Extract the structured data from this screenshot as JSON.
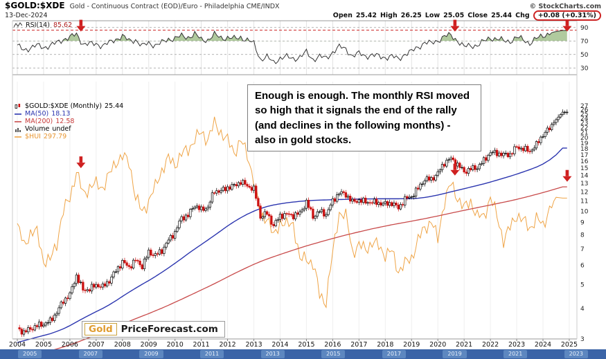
{
  "header": {
    "symbol": "$GOLD:$XDE",
    "description": "Gold - Continuous Contract (EOD)/Euro - Philadelphia CME/INDX",
    "date": "13-Dec-2024",
    "copyright": "© StockCharts.com",
    "quote": {
      "open_label": "Open",
      "open": "25.42",
      "high_label": "High",
      "high": "26.25",
      "low_label": "Low",
      "low": "25.05",
      "close_label": "Close",
      "close": "25.44",
      "chg_label": "Chg",
      "chg": "+0.08 (+0.31%)"
    }
  },
  "rsi_panel": {
    "legend": {
      "label": "RSI(14)",
      "value": "85.62"
    },
    "axis_labels": [
      "90",
      "70",
      "50",
      "30"
    ]
  },
  "main_panel": {
    "legend": [
      {
        "label": "$GOLD:$XDE (Monthly)",
        "value": "25.44"
      },
      {
        "label": "MA(50)",
        "value": "18.13"
      },
      {
        "label": "MA(200)",
        "value": "12.58"
      },
      {
        "label": "Volume",
        "value": "undef"
      },
      {
        "label": "$HUI",
        "value": "297.79"
      }
    ]
  },
  "annotation": {
    "text": "Enough is enough. The monthly RSI moved so high that it signals the end of the rally (and declines in the following months) - also in gold stocks."
  },
  "logo": {
    "part1": "Gold",
    "part2": "PriceForecast.com"
  },
  "timeline": {
    "years": [
      "2005",
      "2007",
      "2009",
      "2011",
      "2013",
      "2015",
      "2017",
      "2019",
      "2021",
      "2023"
    ]
  },
  "chart_data": [
    {
      "type": "line",
      "name": "RSI(14) monthly",
      "title": "RSI(14) 85.62",
      "x_start": 2004,
      "x_step_years": 0.25,
      "ylim": [
        20,
        100
      ],
      "gridlines": [
        90,
        70,
        50,
        30
      ],
      "overbought_level": 70,
      "signal_level": 86,
      "arrows_x": [
        2006.42,
        2020.65,
        2024.92
      ],
      "values": [
        62,
        57,
        60,
        63,
        61,
        63,
        67,
        73,
        75,
        80,
        66,
        65,
        66,
        63,
        67,
        73,
        77,
        70,
        72,
        62,
        67,
        64,
        67,
        73,
        74,
        77,
        76,
        80,
        72,
        72,
        79,
        75,
        75,
        73,
        76,
        71,
        66,
        43,
        46,
        38,
        45,
        46,
        44,
        46,
        53,
        43,
        47,
        44,
        54,
        61,
        58,
        48,
        51,
        48,
        49,
        47,
        46,
        47,
        43,
        51,
        54,
        61,
        68,
        66,
        71,
        77,
        78,
        71,
        61,
        63,
        64,
        69,
        75,
        73,
        70,
        70,
        75,
        72,
        67,
        73,
        78,
        82,
        84,
        85.62
      ]
    },
    {
      "type": "candlestick",
      "name": "$GOLD:$XDE monthly with MA(50), MA(200) and $HUI overlay",
      "x_start": 2004,
      "x_step_years": 0.25,
      "log_scale": true,
      "ylim": [
        3,
        28
      ],
      "y_ticks": [
        27,
        26,
        25,
        24,
        23,
        22,
        21,
        20,
        19,
        18,
        17,
        16,
        15,
        14,
        13,
        12,
        11,
        10,
        9,
        8,
        7,
        6,
        5,
        4,
        3
      ],
      "x_labels": [
        "2004",
        "2005",
        "2006",
        "2007",
        "2008",
        "2009",
        "2010",
        "2011",
        "2012",
        "2013",
        "2014",
        "2015",
        "2016",
        "2017",
        "2018",
        "2019",
        "2020",
        "2021",
        "2022",
        "2023",
        "2024",
        "2025"
      ],
      "close": [
        3.3,
        3.2,
        3.3,
        3.4,
        3.45,
        3.55,
        3.85,
        4.3,
        4.55,
        5.45,
        4.75,
        4.8,
        5.0,
        4.9,
        5.2,
        5.7,
        6.2,
        5.9,
        6.3,
        5.95,
        6.8,
        6.6,
        6.9,
        7.6,
        8.2,
        9.4,
        9.6,
        10.6,
        10.1,
        10.4,
        12.1,
        12.1,
        12.5,
        12.7,
        13.2,
        12.7,
        12.3,
        9.5,
        9.8,
        8.7,
        9.6,
        9.7,
        9.6,
        9.8,
        10.9,
        9.5,
        10.0,
        9.7,
        11.0,
        11.9,
        11.7,
        10.9,
        11.1,
        10.9,
        10.9,
        10.8,
        10.7,
        10.8,
        10.3,
        11.2,
        11.5,
        12.4,
        13.5,
        13.5,
        14.3,
        15.8,
        16.4,
        15.5,
        14.5,
        14.9,
        15.1,
        16.1,
        17.4,
        17.3,
        17.0,
        17.1,
        18.3,
        18.0,
        17.6,
        18.7,
        20.6,
        21.8,
        23.7,
        25.44
      ],
      "ma50": [
        2.9,
        2.95,
        3.0,
        3.05,
        3.1,
        3.15,
        3.22,
        3.3,
        3.4,
        3.52,
        3.64,
        3.76,
        3.88,
        4.0,
        4.14,
        4.3,
        4.48,
        4.66,
        4.84,
        5.02,
        5.2,
        5.4,
        5.62,
        5.86,
        6.12,
        6.4,
        6.7,
        7.0,
        7.3,
        7.62,
        7.96,
        8.32,
        8.7,
        9.06,
        9.4,
        9.72,
        10.0,
        10.25,
        10.45,
        10.6,
        10.72,
        10.82,
        10.9,
        10.97,
        11.03,
        11.07,
        11.1,
        11.12,
        11.14,
        11.16,
        11.18,
        11.2,
        11.21,
        11.22,
        11.23,
        11.24,
        11.24,
        11.24,
        11.24,
        11.25,
        11.26,
        11.3,
        11.38,
        11.5,
        11.65,
        11.82,
        12.0,
        12.18,
        12.36,
        12.55,
        12.74,
        12.94,
        13.16,
        13.4,
        13.65,
        13.9,
        14.18,
        14.48,
        14.8,
        15.15,
        15.6,
        16.2,
        17.0,
        18.13
      ],
      "ma200": [
        2.5,
        2.53,
        2.56,
        2.6,
        2.64,
        2.68,
        2.73,
        2.78,
        2.84,
        2.9,
        2.97,
        3.04,
        3.11,
        3.19,
        3.27,
        3.36,
        3.45,
        3.54,
        3.63,
        3.72,
        3.81,
        3.91,
        4.01,
        4.12,
        4.24,
        4.36,
        4.49,
        4.62,
        4.76,
        4.9,
        5.05,
        5.21,
        5.38,
        5.55,
        5.72,
        5.89,
        6.06,
        6.22,
        6.37,
        6.51,
        6.65,
        6.79,
        6.93,
        7.07,
        7.21,
        7.34,
        7.47,
        7.6,
        7.73,
        7.86,
        7.99,
        8.11,
        8.23,
        8.35,
        8.47,
        8.58,
        8.69,
        8.8,
        8.9,
        9.0,
        9.1,
        9.21,
        9.32,
        9.44,
        9.56,
        9.69,
        9.82,
        9.95,
        10.08,
        10.21,
        10.34,
        10.47,
        10.6,
        10.74,
        10.88,
        11.02,
        11.18,
        11.35,
        11.53,
        11.72,
        11.92,
        12.13,
        12.35,
        12.58
      ],
      "hui": [
        230,
        190,
        215,
        215,
        165,
        165,
        195,
        262,
        300,
        380,
        310,
        330,
        340,
        330,
        370,
        420,
        440,
        420,
        300,
        260,
        290,
        330,
        390,
        430,
        410,
        450,
        470,
        520,
        550,
        520,
        600,
        555,
        510,
        460,
        510,
        450,
        350,
        250,
        250,
        205,
        240,
        230,
        235,
        165,
        170,
        160,
        120,
        112,
        175,
        260,
        250,
        180,
        190,
        185,
        195,
        190,
        175,
        180,
        150,
        160,
        170,
        200,
        225,
        240,
        200,
        290,
        340,
        300,
        270,
        290,
        250,
        250,
        300,
        250,
        200,
        225,
        255,
        240,
        225,
        245,
        230,
        270,
        300,
        297.79
      ],
      "hui_price_scale": 0.038,
      "arrows": [
        {
          "x": 2006.42,
          "y": 15.0
        },
        {
          "x": 2020.65,
          "y": 14.0
        },
        {
          "x": 2024.92,
          "y": 13.2
        }
      ],
      "colors": {
        "up": "#000000",
        "down": "#cc1111",
        "ma50": "#2b35af",
        "ma200": "#c84a4a",
        "hui": "#efa446",
        "arrow": "#cf2020"
      }
    }
  ]
}
